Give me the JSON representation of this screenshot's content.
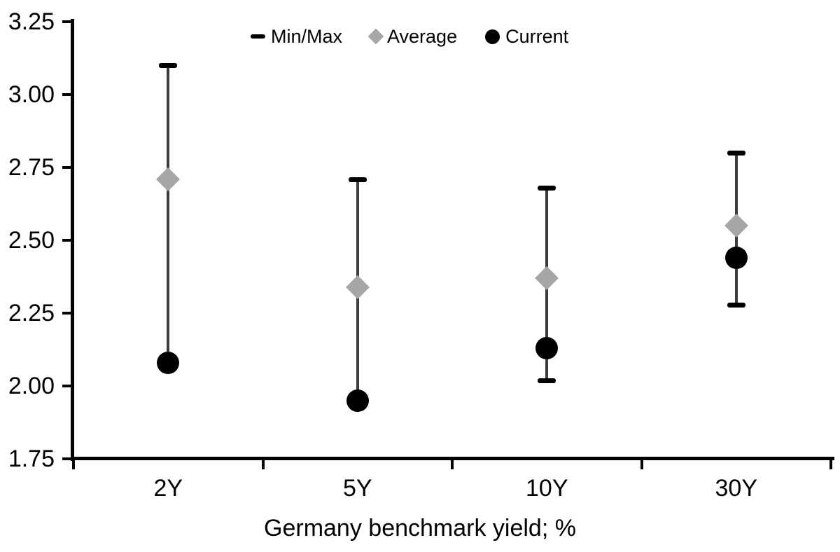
{
  "chart_data": {
    "type": "scatter",
    "subtype": "min-max-range-with-average-and-current",
    "title": "",
    "xlabel": "Germany benchmark yield; %",
    "ylabel": "",
    "categories": [
      "2Y",
      "5Y",
      "10Y",
      "30Y"
    ],
    "series": [
      {
        "name": "Min/Max",
        "role": "range",
        "min": [
          2.08,
          1.95,
          2.02,
          2.28
        ],
        "max": [
          3.1,
          2.71,
          2.68,
          2.8
        ]
      },
      {
        "name": "Average",
        "role": "marker-diamond",
        "values": [
          2.71,
          2.34,
          2.37,
          2.55
        ]
      },
      {
        "name": "Current",
        "role": "marker-circle",
        "values": [
          2.08,
          1.95,
          2.13,
          2.44
        ]
      }
    ],
    "ylim": [
      1.75,
      3.25
    ],
    "ytick_step": 0.25,
    "ytick_labels": [
      "3.25",
      "3.00",
      "2.75",
      "2.50",
      "2.25",
      "2.00",
      "1.75"
    ],
    "grid": false,
    "legend_position": "top-center"
  },
  "legend": {
    "items": [
      {
        "label": "Min/Max",
        "marker": "dash-icon"
      },
      {
        "label": "Average",
        "marker": "diamond-icon"
      },
      {
        "label": "Current",
        "marker": "circle-icon"
      }
    ]
  },
  "colors": {
    "background": "#ffffff",
    "axis": "#000000",
    "text": "#000000",
    "whisker_line": "#3d3d3d",
    "minmax_cap": "#000000",
    "average_fill": "#a6a6a6",
    "current_fill": "#000000"
  }
}
